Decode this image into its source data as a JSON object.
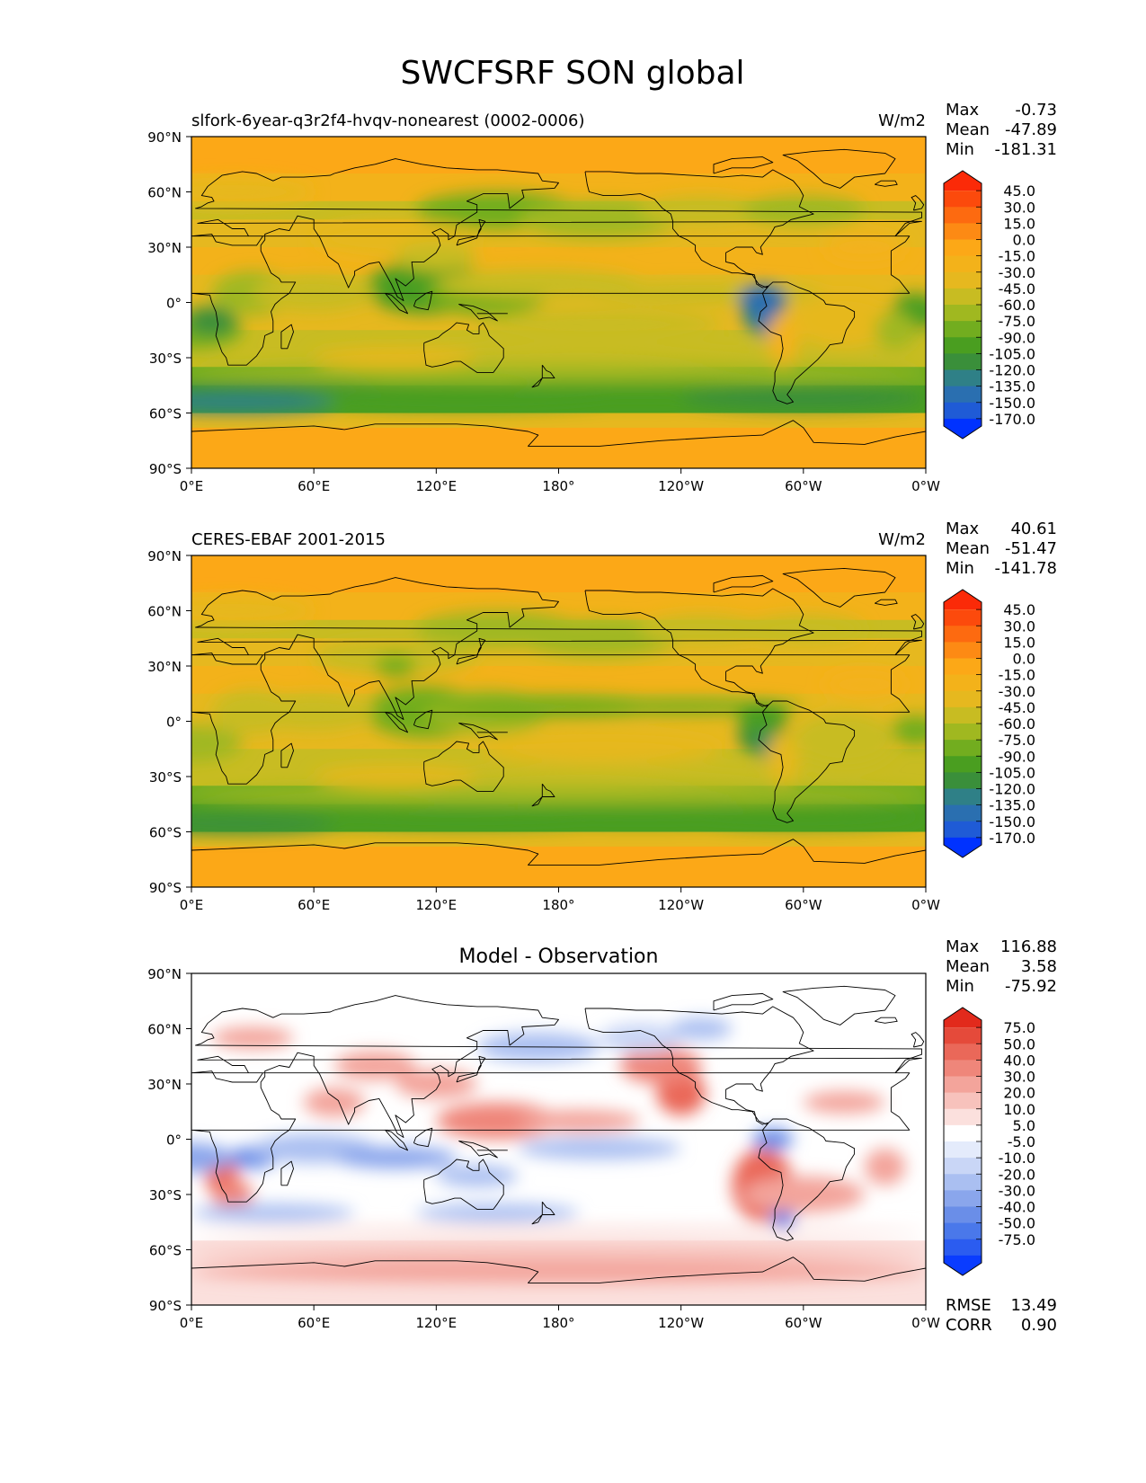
{
  "title": "SWCFSRF SON global",
  "axes": {
    "yticks": [
      "90°N",
      "60°N",
      "30°N",
      "0°",
      "30°S",
      "60°S",
      "90°S"
    ],
    "xticks": [
      "0°E",
      "60°E",
      "120°E",
      "180°",
      "120°W",
      "60°W",
      "0°W"
    ]
  },
  "colors": {
    "main_scale": [
      "#0032ff",
      "#1f5bd6",
      "#2a6fb0",
      "#2f8087",
      "#3a8f3a",
      "#4a9e20",
      "#72ad1f",
      "#a0b820",
      "#c8bc22",
      "#e6b81f",
      "#f3b21a",
      "#fca817",
      "#fd8a14",
      "#fd6a10",
      "#fc4a0c",
      "#fb2a08"
    ],
    "diff_scale": [
      "#0a3cff",
      "#2b5cf0",
      "#4a78ea",
      "#6a8ee8",
      "#8aa6ec",
      "#aabff1",
      "#c9d6f6",
      "#e4ebfb",
      "#ffffff",
      "#fbe0dd",
      "#f7c2bc",
      "#f3a49b",
      "#ef867a",
      "#ea6859",
      "#e54a3a",
      "#e22a1c"
    ],
    "land_line": "#000000"
  },
  "chart_data": [
    {
      "type": "heatmap",
      "panel": "model",
      "subtitle_left": "slfork-6year-q3r2f4-hvqv-nonearest (0002-0006)",
      "subtitle_right": "W/m2",
      "stats": [
        {
          "label": "Max",
          "value": "-0.73"
        },
        {
          "label": "Mean",
          "value": "-47.89"
        },
        {
          "label": "Min",
          "value": "-181.31"
        }
      ],
      "colorbar_levels": [
        "45.0",
        "30.0",
        "15.0",
        "0.0",
        "-15.0",
        "-30.0",
        "-45.0",
        "-60.0",
        "-75.0",
        "-90.0",
        "-105.0",
        "-120.0",
        "-135.0",
        "-150.0",
        "-170.0"
      ],
      "x_range": [
        0,
        360
      ],
      "y_range": [
        -90,
        90
      ]
    },
    {
      "type": "heatmap",
      "panel": "observation",
      "subtitle_left": "CERES-EBAF 2001-2015",
      "subtitle_right": "W/m2",
      "stats": [
        {
          "label": "Max",
          "value": "40.61"
        },
        {
          "label": "Mean",
          "value": "-51.47"
        },
        {
          "label": "Min",
          "value": "-141.78"
        }
      ],
      "colorbar_levels": [
        "45.0",
        "30.0",
        "15.0",
        "0.0",
        "-15.0",
        "-30.0",
        "-45.0",
        "-60.0",
        "-75.0",
        "-90.0",
        "-105.0",
        "-120.0",
        "-135.0",
        "-150.0",
        "-170.0"
      ],
      "x_range": [
        0,
        360
      ],
      "y_range": [
        -90,
        90
      ]
    },
    {
      "type": "heatmap",
      "panel": "difference",
      "subtitle_center": "Model - Observation",
      "stats": [
        {
          "label": "Max",
          "value": "116.88"
        },
        {
          "label": "Mean",
          "value": "3.58"
        },
        {
          "label": "Min",
          "value": "-75.92"
        }
      ],
      "colorbar_levels": [
        "75.0",
        "50.0",
        "40.0",
        "30.0",
        "20.0",
        "10.0",
        "5.0",
        "-5.0",
        "-10.0",
        "-20.0",
        "-30.0",
        "-40.0",
        "-50.0",
        "-75.0"
      ],
      "metrics": [
        {
          "label": "RMSE",
          "value": "13.49"
        },
        {
          "label": "CORR",
          "value": "0.90"
        }
      ],
      "x_range": [
        0,
        360
      ],
      "y_range": [
        -90,
        90
      ]
    }
  ]
}
